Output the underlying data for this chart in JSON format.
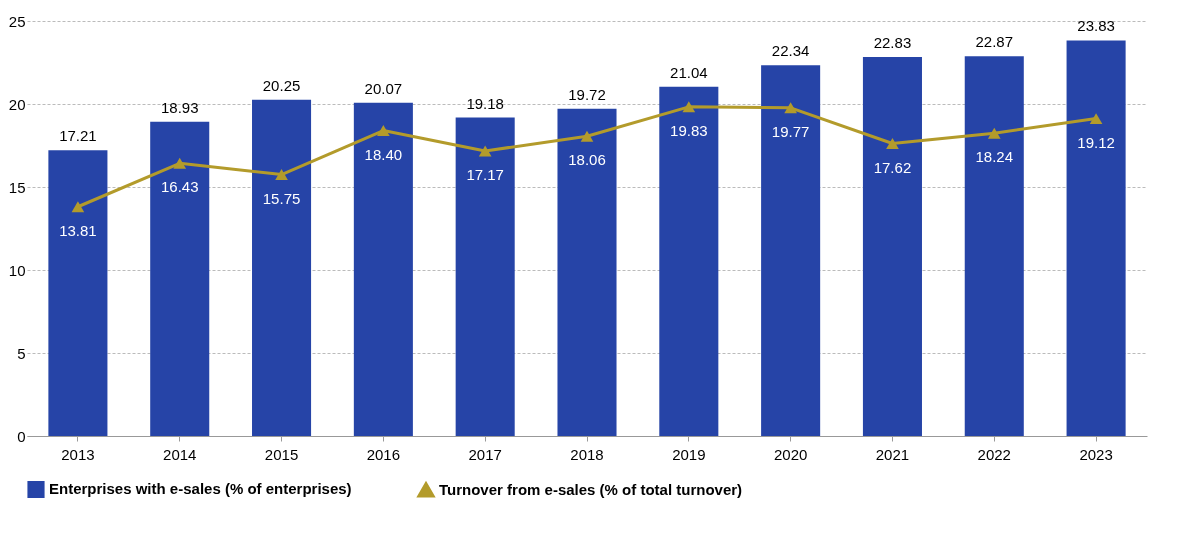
{
  "chart_data": {
    "type": "bar",
    "categories": [
      "2013",
      "2014",
      "2015",
      "2016",
      "2017",
      "2018",
      "2019",
      "2020",
      "2021",
      "2022",
      "2023"
    ],
    "series": [
      {
        "name": "Enterprises with e-sales (% of enterprises)",
        "color": "#2644a7",
        "values": [
          17.21,
          18.93,
          20.25,
          20.07,
          19.18,
          19.72,
          21.04,
          22.34,
          22.83,
          22.87,
          23.83
        ],
        "value_labels": [
          "17.21",
          "18.93",
          "20.25",
          "20.07",
          "19.18",
          "19.72",
          "21.04",
          "22.34",
          "22.83",
          "22.87",
          "23.83"
        ]
      },
      {
        "name": "Turnover from e-sales (% of total turnover)",
        "type": "line",
        "color": "#b39b2b",
        "values": [
          13.81,
          16.43,
          15.75,
          18.4,
          17.17,
          18.06,
          19.83,
          19.77,
          17.62,
          18.24,
          19.12
        ],
        "value_labels": [
          "13.81",
          "16.43",
          "15.75",
          "18.40",
          "17.17",
          "18.06",
          "19.83",
          "19.77",
          "17.62",
          "18.24",
          "19.12"
        ]
      }
    ],
    "ylim": [
      0,
      25
    ],
    "yticks": [
      0,
      5,
      10,
      15,
      20,
      25
    ],
    "grid": "y",
    "legend": "bottom",
    "marker": "triangle"
  }
}
